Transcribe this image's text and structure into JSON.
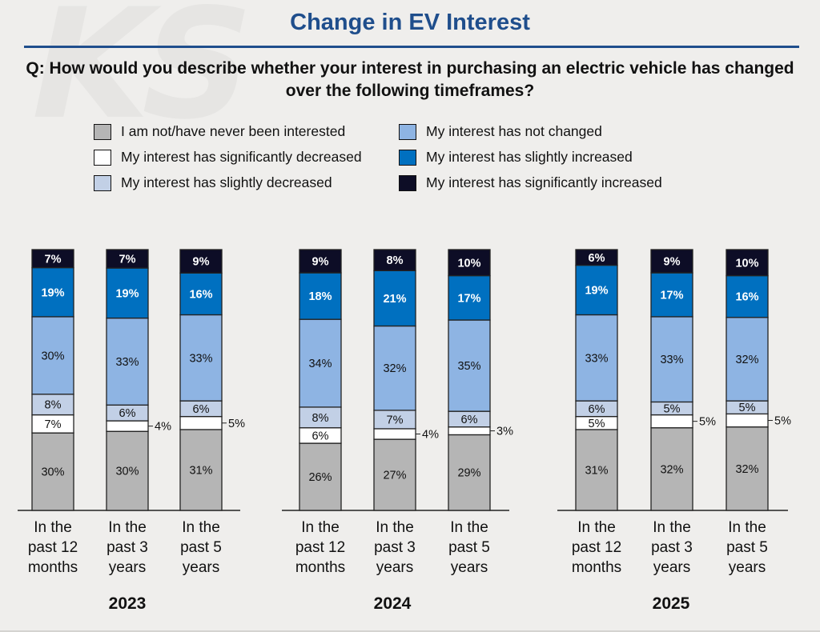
{
  "watermark": "KS",
  "colors": {
    "title": "#1f4e8c",
    "categories": [
      "#b5b5b5",
      "#ffffff",
      "#c2d0e6",
      "#8eb4e3",
      "#0070c0",
      "#0d0d26"
    ],
    "label_dark": "#111111",
    "label_light": "#ffffff"
  },
  "chart_data": {
    "type": "stacked-bar",
    "title": "Change in EV Interest",
    "question": "Q: How would you describe whether your interest in purchasing an electric vehicle has changed over the following timeframes?",
    "legend": [
      "I am not/have never been interested",
      "My interest has significantly decreased",
      "My interest has slightly decreased",
      "My interest has not changed",
      "My interest has slightly increased",
      "My interest has significantly increased"
    ],
    "timeframes": [
      [
        "In the",
        "past 12",
        "months"
      ],
      [
        "In the",
        "past 3",
        "years"
      ],
      [
        "In the",
        "past 5",
        "years"
      ]
    ],
    "groups": [
      {
        "year": "2023",
        "bars": [
          {
            "values": [
              30,
              7,
              8,
              30,
              19,
              7
            ]
          },
          {
            "values": [
              30,
              4,
              6,
              33,
              19,
              7
            ]
          },
          {
            "values": [
              31,
              5,
              6,
              33,
              16,
              9
            ]
          }
        ]
      },
      {
        "year": "2024",
        "bars": [
          {
            "values": [
              26,
              6,
              8,
              34,
              18,
              9
            ]
          },
          {
            "values": [
              27,
              4,
              7,
              32,
              21,
              8
            ]
          },
          {
            "values": [
              29,
              3,
              6,
              35,
              17,
              10
            ]
          }
        ]
      },
      {
        "year": "2025",
        "bars": [
          {
            "values": [
              31,
              5,
              6,
              33,
              19,
              6
            ]
          },
          {
            "values": [
              32,
              5,
              5,
              33,
              17,
              9
            ]
          },
          {
            "values": [
              32,
              5,
              5,
              32,
              16,
              10
            ]
          }
        ]
      }
    ],
    "value_suffix": "%"
  }
}
